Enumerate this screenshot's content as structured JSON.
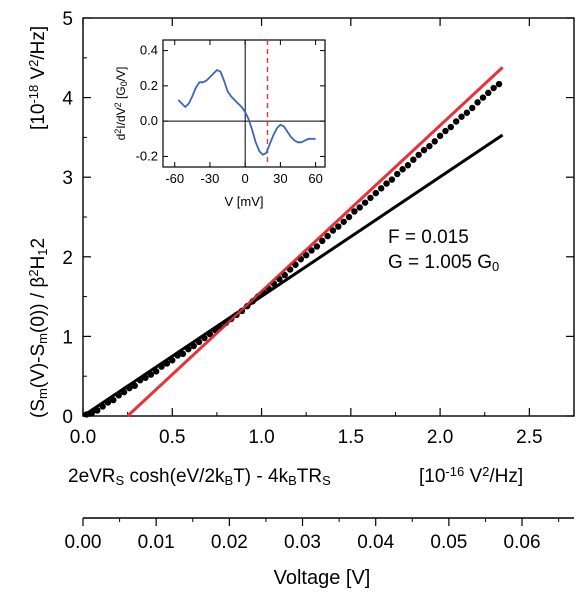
{
  "chart_data": [
    {
      "type": "scatter",
      "xlabel_parts": [
        "2eVR",
        "S",
        " cosh(eV/2k",
        "B",
        "T) - 4k",
        "B",
        "TR",
        "S"
      ],
      "xunit_parts": [
        "[10",
        "-16",
        " V",
        "2",
        "/Hz]"
      ],
      "ylabel_parts": [
        "(S",
        "m",
        "(V)-S",
        "m",
        "(0)) / β",
        "2",
        "H",
        "1",
        "2"
      ],
      "yunit_parts": [
        "[10",
        "-18",
        " V",
        "2",
        "/Hz]"
      ],
      "xlim": [
        0,
        2.75
      ],
      "ylim": [
        0,
        5
      ],
      "x_ticks": [
        "0.0",
        "0.5",
        "1.0",
        "1.5",
        "2.0",
        "2.5"
      ],
      "y_ticks": [
        "0",
        "1",
        "2",
        "3",
        "4",
        "5"
      ],
      "series": [
        {
          "kind": "points",
          "color": "#000000",
          "x": [
            0.02,
            0.05,
            0.08,
            0.11,
            0.14,
            0.17,
            0.2,
            0.23,
            0.26,
            0.29,
            0.32,
            0.35,
            0.38,
            0.41,
            0.44,
            0.47,
            0.5,
            0.53,
            0.56,
            0.59,
            0.62,
            0.65,
            0.68,
            0.71,
            0.74,
            0.77,
            0.8,
            0.83,
            0.86,
            0.89,
            0.92,
            0.95,
            0.98,
            1.01,
            1.04,
            1.07,
            1.1,
            1.13,
            1.16,
            1.19,
            1.22,
            1.25,
            1.28,
            1.31,
            1.34,
            1.37,
            1.4,
            1.43,
            1.46,
            1.49,
            1.52,
            1.55,
            1.58,
            1.61,
            1.64,
            1.67,
            1.7,
            1.73,
            1.76,
            1.79,
            1.82,
            1.85,
            1.88,
            1.91,
            1.94,
            1.97,
            2.0,
            2.03,
            2.06,
            2.09,
            2.12,
            2.15,
            2.18,
            2.21,
            2.24,
            2.27,
            2.3,
            2.33
          ],
          "y": [
            0.02,
            0.04,
            0.07,
            0.12,
            0.17,
            0.2,
            0.26,
            0.3,
            0.35,
            0.38,
            0.45,
            0.48,
            0.52,
            0.56,
            0.62,
            0.66,
            0.7,
            0.76,
            0.78,
            0.84,
            0.88,
            0.93,
            0.98,
            1.03,
            1.08,
            1.12,
            1.17,
            1.22,
            1.27,
            1.32,
            1.38,
            1.44,
            1.5,
            1.55,
            1.6,
            1.66,
            1.72,
            1.77,
            1.84,
            1.9,
            1.97,
            2.02,
            2.08,
            2.13,
            2.2,
            2.26,
            2.33,
            2.38,
            2.44,
            2.5,
            2.57,
            2.62,
            2.68,
            2.74,
            2.8,
            2.86,
            2.92,
            2.97,
            3.04,
            3.1,
            3.15,
            3.22,
            3.28,
            3.34,
            3.39,
            3.45,
            3.52,
            3.58,
            3.63,
            3.7,
            3.76,
            3.81,
            3.87,
            3.94,
            4.0,
            4.06,
            4.12,
            4.17
          ]
        },
        {
          "kind": "line",
          "color": "#000000",
          "x": [
            0,
            2.35
          ],
          "y": [
            0,
            3.53
          ]
        },
        {
          "kind": "line",
          "color": "#e8333a",
          "x": [
            0.25,
            2.35
          ],
          "y": [
            0,
            4.38
          ]
        }
      ],
      "annotations": {
        "f_label": "F = 0.015",
        "g_label_main": "G = 1.005 G",
        "g_label_sub": "0"
      },
      "grid": false,
      "legend": "none"
    },
    {
      "type": "line",
      "xlabel": "V [mV]",
      "ylabel_parts": [
        "d",
        "2",
        "I/dV",
        "2",
        " [G",
        "0",
        "/V]"
      ],
      "xlim": [
        -70,
        68
      ],
      "ylim": [
        -0.26,
        0.46
      ],
      "x_ticks": [
        "-60",
        "-30",
        "0",
        "30",
        "60"
      ],
      "y_ticks": [
        "-0.2",
        "0.0",
        "0.2",
        "0.4"
      ],
      "zero_lines": true,
      "marker_line": {
        "x": 19,
        "color": "#e8333a",
        "style": "dashed"
      },
      "series": [
        {
          "color": "#3a66b8",
          "x": [
            -57,
            -54,
            -51,
            -48,
            -45,
            -42,
            -39,
            -36,
            -33,
            -30,
            -27,
            -24,
            -21,
            -18,
            -15,
            -12,
            -9,
            -6,
            -3,
            0,
            3,
            6,
            9,
            12,
            15,
            18,
            21,
            24,
            27,
            30,
            33,
            36,
            39,
            42,
            45,
            48,
            51,
            54,
            57,
            60
          ],
          "y": [
            0.12,
            0.1,
            0.08,
            0.1,
            0.14,
            0.19,
            0.22,
            0.22,
            0.23,
            0.25,
            0.27,
            0.29,
            0.28,
            0.23,
            0.17,
            0.14,
            0.12,
            0.1,
            0.08,
            0.05,
            0.01,
            -0.05,
            -0.12,
            -0.17,
            -0.19,
            -0.18,
            -0.13,
            -0.08,
            -0.04,
            -0.02,
            -0.03,
            -0.06,
            -0.09,
            -0.11,
            -0.12,
            -0.12,
            -0.11,
            -0.1,
            -0.1,
            -0.1
          ]
        }
      ]
    },
    {
      "type": "axis",
      "xlabel": "Voltage [V]",
      "xlim": [
        0,
        0.0671
      ],
      "x_ticks": [
        "0.00",
        "0.01",
        "0.02",
        "0.03",
        "0.04",
        "0.05",
        "0.06"
      ]
    }
  ]
}
